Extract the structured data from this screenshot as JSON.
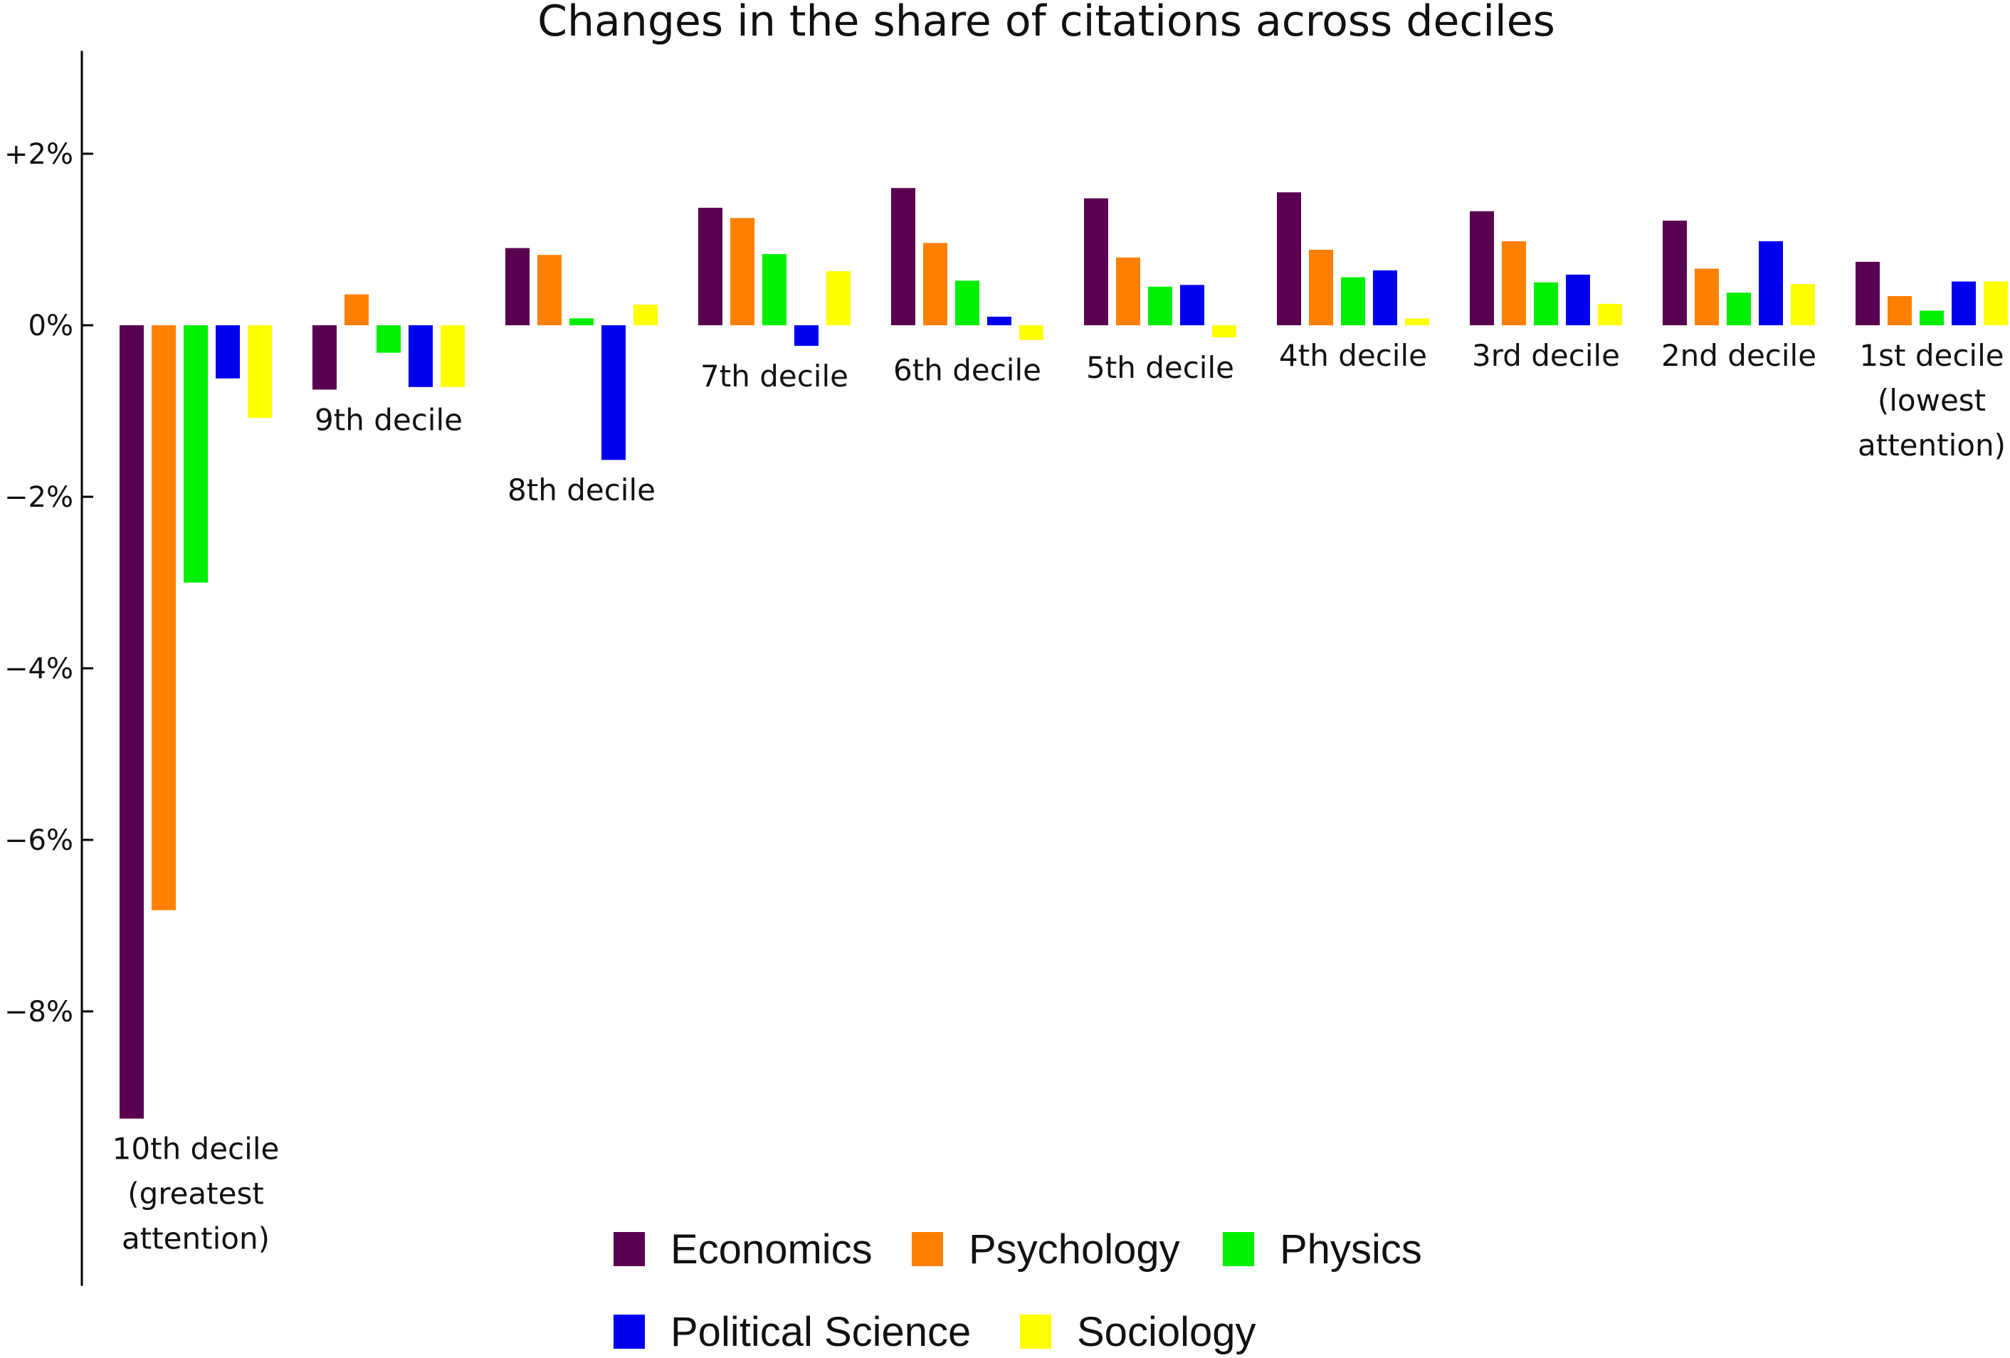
{
  "chart_data": {
    "type": "bar",
    "title": "Changes in the share of citations across deciles",
    "xlabel": "",
    "ylabel": "",
    "ylim": [
      -11.2,
      3.2
    ],
    "yticks": [
      2,
      0,
      -2,
      -4,
      -6,
      -8
    ],
    "ytick_labels": [
      "+2%",
      "0%",
      "−2%",
      "−4%",
      "−6%",
      "−8%"
    ],
    "grid": false,
    "legend_position": "bottom",
    "categories": [
      [
        "10th decile",
        "(greatest",
        "attention)"
      ],
      [
        "9th decile"
      ],
      [
        "8th decile"
      ],
      [
        "7th decile"
      ],
      [
        "6th decile"
      ],
      [
        "5th decile"
      ],
      [
        "4th decile"
      ],
      [
        "3rd decile"
      ],
      [
        "2nd decile"
      ],
      [
        "1st decile",
        "(lowest",
        "attention)"
      ]
    ],
    "series": [
      {
        "name": "Economics",
        "color": "#5a0050",
        "values": [
          -9.25,
          -0.75,
          0.9,
          1.37,
          1.6,
          1.48,
          1.55,
          1.33,
          1.22,
          0.74
        ]
      },
      {
        "name": "Psychology",
        "color": "#ff8000",
        "values": [
          -6.82,
          0.36,
          0.82,
          1.25,
          0.96,
          0.79,
          0.88,
          0.98,
          0.66,
          0.34
        ]
      },
      {
        "name": "Physics",
        "color": "#00ee00",
        "values": [
          -3.0,
          -0.32,
          0.08,
          0.83,
          0.52,
          0.45,
          0.56,
          0.5,
          0.38,
          0.17
        ]
      },
      {
        "name": "Political Science",
        "color": "#0000ee",
        "values": [
          -0.62,
          -0.72,
          -1.57,
          -0.24,
          0.1,
          0.47,
          0.64,
          0.59,
          0.98,
          0.51
        ]
      },
      {
        "name": "Sociology",
        "color": "#ffff00",
        "values": [
          -1.08,
          -0.72,
          0.24,
          0.63,
          -0.17,
          -0.14,
          0.08,
          0.25,
          0.48,
          0.51
        ]
      }
    ]
  }
}
